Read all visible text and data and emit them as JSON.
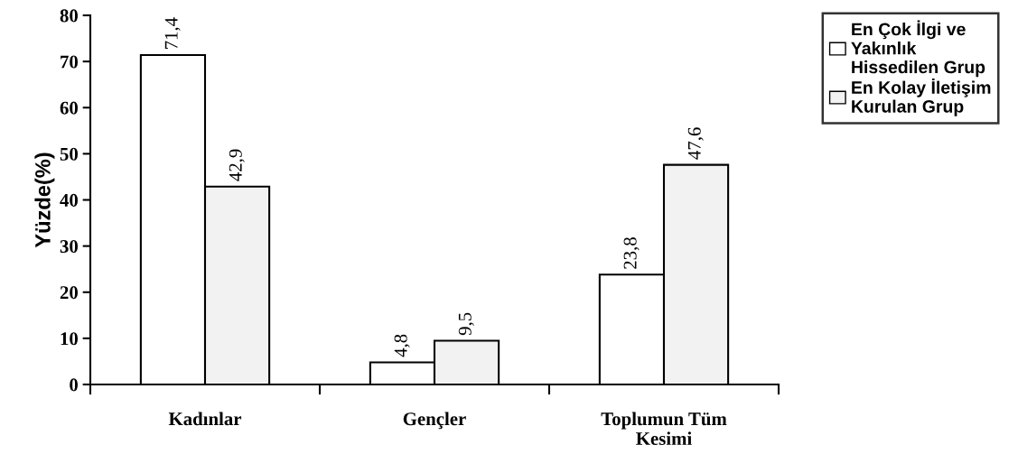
{
  "chart_data": {
    "type": "bar",
    "ylabel": "Yüzde(%)",
    "categories": [
      "Kadınlar",
      "Gençler",
      "Toplumun Tüm\nKesimi"
    ],
    "series": [
      {
        "name": "En Çok İlgi ve\nYakınlık\nHissedilen Grup",
        "color": "#ffffff",
        "values": [
          71.4,
          4.8,
          23.8
        ],
        "value_labels": [
          "71,4",
          "4,8",
          "23,8"
        ]
      },
      {
        "name": "En Kolay İletişim\nKurulan Grup",
        "color": "#f2f2f2",
        "values": [
          42.9,
          9.5,
          47.6
        ],
        "value_labels": [
          "42,9",
          "9,5",
          "47,6"
        ]
      }
    ],
    "ylim": [
      0,
      80
    ],
    "yticks": [
      0,
      10,
      20,
      30,
      40,
      50,
      60,
      70,
      80
    ],
    "grid": false,
    "legend": "top right"
  }
}
